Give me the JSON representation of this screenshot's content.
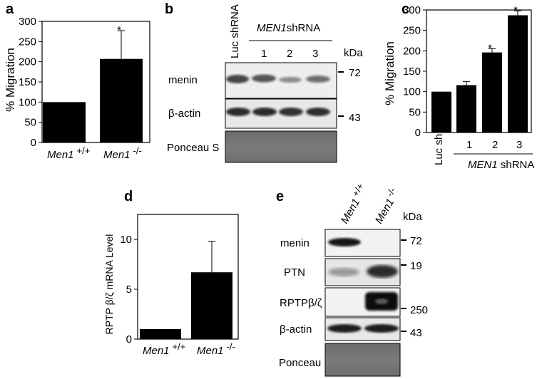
{
  "figure": {
    "panels": {
      "a": {
        "letter": "a",
        "chart_data": {
          "type": "bar",
          "ylabel": "% Migration",
          "ylim": [
            0,
            300
          ],
          "yticks": [
            "0",
            "50",
            "100",
            "150",
            "200",
            "250",
            "300"
          ],
          "categories": [
            {
              "main": "Men1",
              "sup": "+/+"
            },
            {
              "main": "Men1",
              "sup": "-/-"
            }
          ],
          "values": [
            100,
            207
          ],
          "errors": [
            0,
            70
          ],
          "significance": [
            "",
            "*"
          ],
          "bar_color": "#000000"
        }
      },
      "b": {
        "letter": "b",
        "lane_header_rotated": "Luc shRNA",
        "group_label": {
          "italic": "MEN1",
          "rest": "shRNA"
        },
        "lane_numbers": [
          "1",
          "2",
          "3"
        ],
        "kda_label": "kDa",
        "rows": [
          {
            "label": "menin",
            "marker": "72"
          },
          {
            "label": "β-actin",
            "marker": "43"
          },
          {
            "label": "Ponceau S",
            "marker": ""
          }
        ]
      },
      "c": {
        "letter": "c",
        "chart_data": {
          "type": "bar",
          "ylabel": "% Migration",
          "ylim": [
            0,
            300
          ],
          "yticks": [
            "0",
            "50",
            "100",
            "150",
            "200",
            "250",
            "300"
          ],
          "categories": [
            "Luc shRNA",
            "1",
            "2",
            "3"
          ],
          "values": [
            100,
            116,
            196,
            287
          ],
          "errors": [
            0,
            9,
            9,
            11
          ],
          "significance": [
            "",
            "",
            "*",
            "*"
          ],
          "group_label": {
            "italic": "MEN1",
            "rest": " shRNA"
          },
          "bar_color": "#000000"
        }
      },
      "d": {
        "letter": "d",
        "chart_data": {
          "type": "bar",
          "ylabel": "RPTP β/ζ mRNA Level",
          "ylim": [
            0,
            12.5
          ],
          "yticks": [
            "0",
            "5",
            "10"
          ],
          "categories": [
            {
              "main": "Men1",
              "sup": "+/+"
            },
            {
              "main": "Men1",
              "sup": "-/-"
            }
          ],
          "values": [
            1,
            6.7
          ],
          "errors": [
            0,
            3.1
          ],
          "bar_color": "#000000"
        }
      },
      "e": {
        "letter": "e",
        "lane_headers": [
          {
            "main": "Men1",
            "sup": "+/+"
          },
          {
            "main": "Men1",
            "sup": "-/-"
          }
        ],
        "kda_label": "kDa",
        "rows": [
          {
            "label": "menin",
            "marker": "72"
          },
          {
            "label": "PTN",
            "marker": "19"
          },
          {
            "label": "RPTPβ/ζ",
            "marker": "250"
          },
          {
            "label": "β-actin",
            "marker": "43"
          },
          {
            "label": "Ponceau S",
            "marker": ""
          }
        ]
      }
    }
  }
}
